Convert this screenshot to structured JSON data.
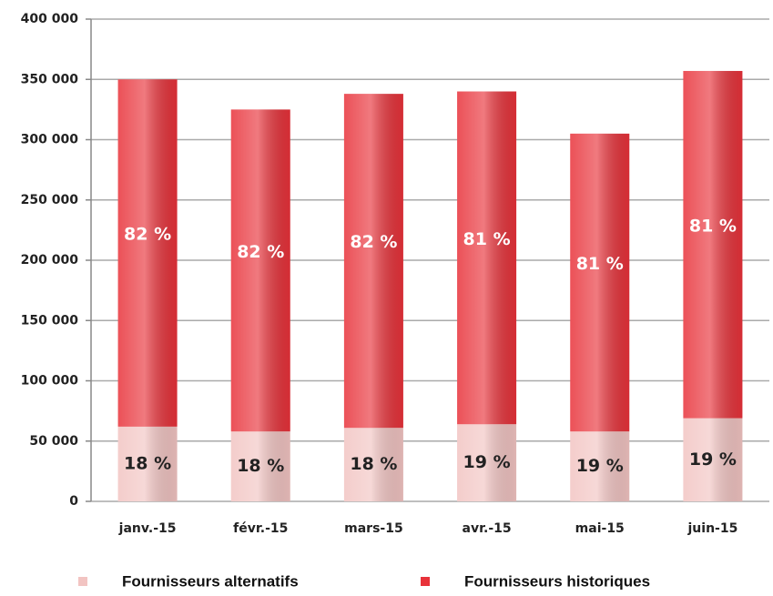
{
  "chart_data": {
    "type": "stacked_bar",
    "categories": [
      "janv.-15",
      "févr.-15",
      "mars-15",
      "avr.-15",
      "mai-15",
      "juin-15"
    ],
    "series": [
      {
        "name": "Fournisseurs alternatifs",
        "color": "#f2c4c2",
        "values": [
          62000,
          58000,
          61000,
          64000,
          58000,
          69000
        ],
        "labels": [
          "18 %",
          "18 %",
          "18 %",
          "19 %",
          "19 %",
          "19 %"
        ]
      },
      {
        "name": "Fournisseurs historiques",
        "color": "#e8323a",
        "values": [
          288000,
          267000,
          277000,
          276000,
          247000,
          288000
        ],
        "labels": [
          "82 %",
          "82 %",
          "82 %",
          "81 %",
          "81 %",
          "81 %"
        ]
      }
    ],
    "ylim": [
      0,
      400000
    ],
    "yticks": [
      0,
      {
        "value": 50000,
        "label": "50 000"
      },
      {
        "value": 100000,
        "label": "100 000"
      },
      {
        "value": 150000,
        "label": "150 000"
      },
      {
        "value": 200000,
        "label": "200 000"
      },
      {
        "value": 250000,
        "label": "250 000"
      },
      {
        "value": 300000,
        "label": "300 000"
      },
      {
        "value": 350000,
        "label": "350 000"
      },
      {
        "value": 400000,
        "label": "400 000"
      }
    ],
    "grid": true,
    "legend": "bottom"
  }
}
